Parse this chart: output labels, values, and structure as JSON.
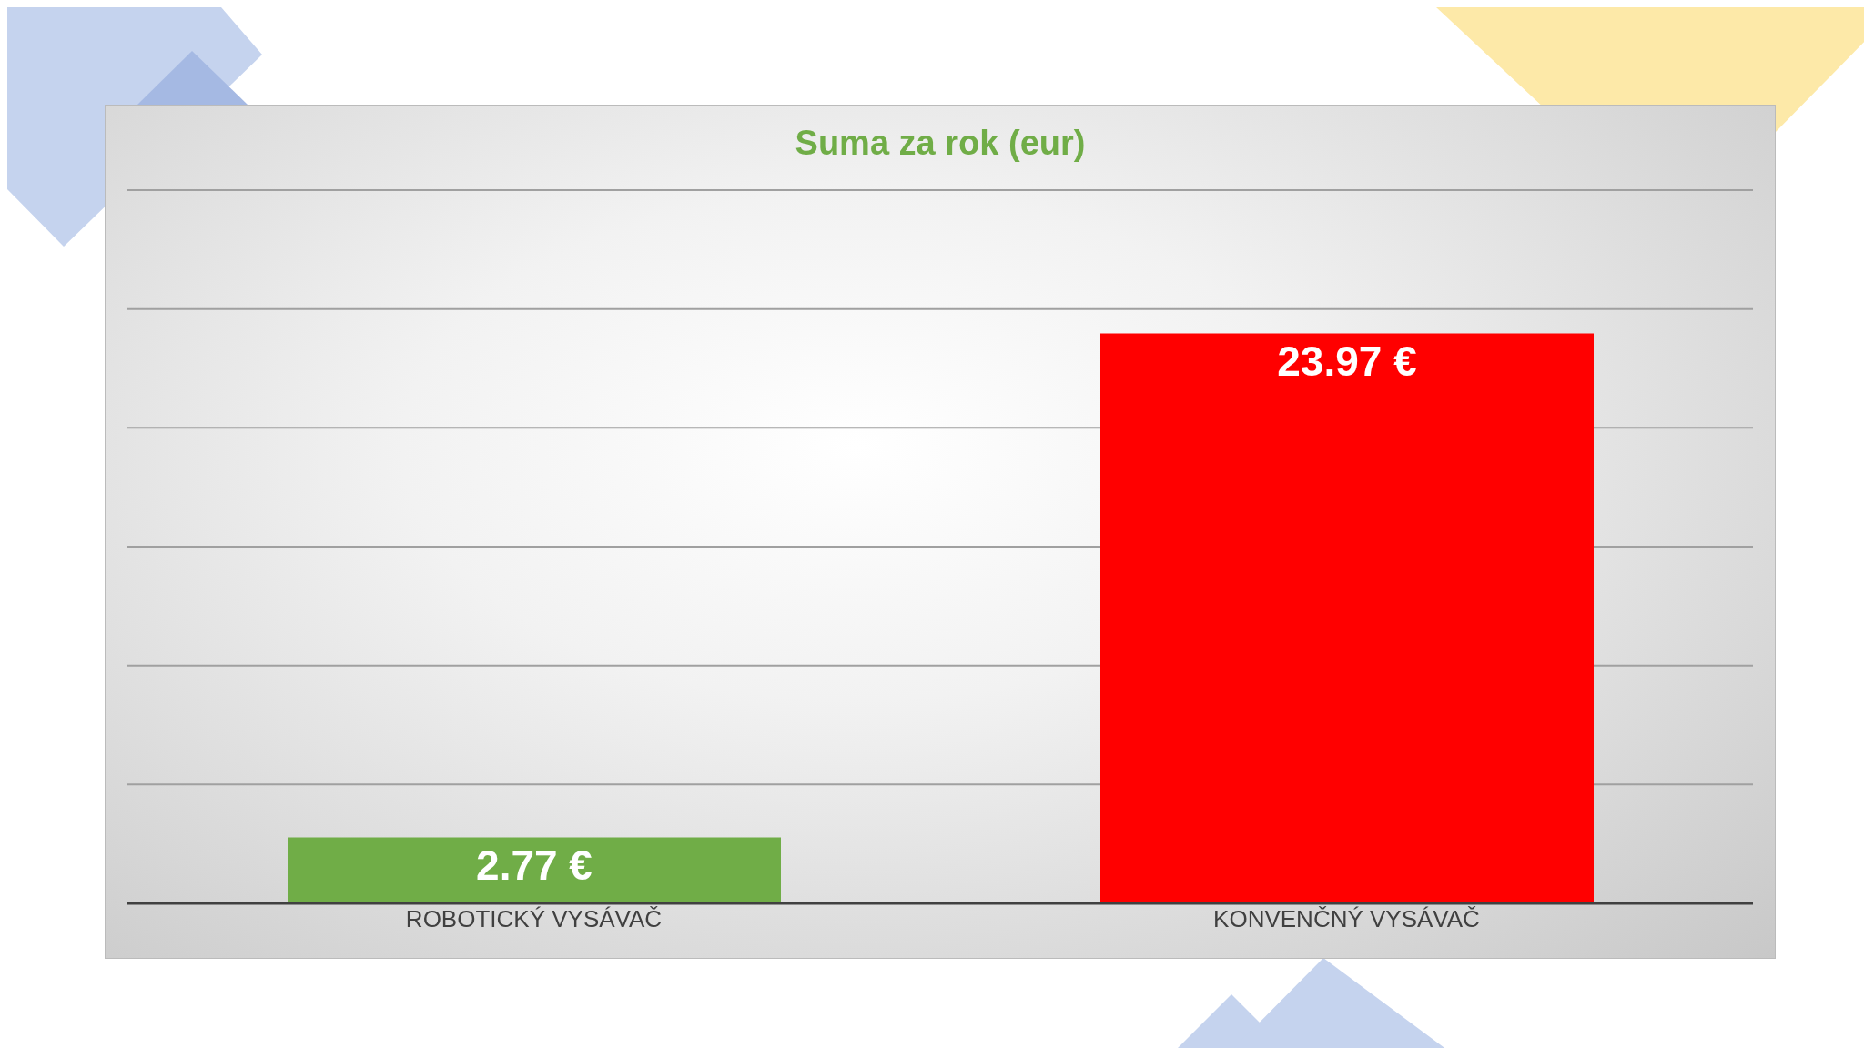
{
  "chart_data": {
    "type": "bar",
    "title": "Suma za rok (eur)",
    "categories": [
      "ROBOTICKÝ VYSÁVAČ",
      "KONVENČNÝ VYSÁVAČ"
    ],
    "values": [
      2.77,
      23.97
    ],
    "colors": [
      "#70ad47",
      "#ff0000"
    ],
    "value_labels": [
      "2.77  €",
      "23.97  €"
    ],
    "ylim": [
      0,
      30
    ],
    "tick_labels": "x",
    "grid": "y"
  }
}
